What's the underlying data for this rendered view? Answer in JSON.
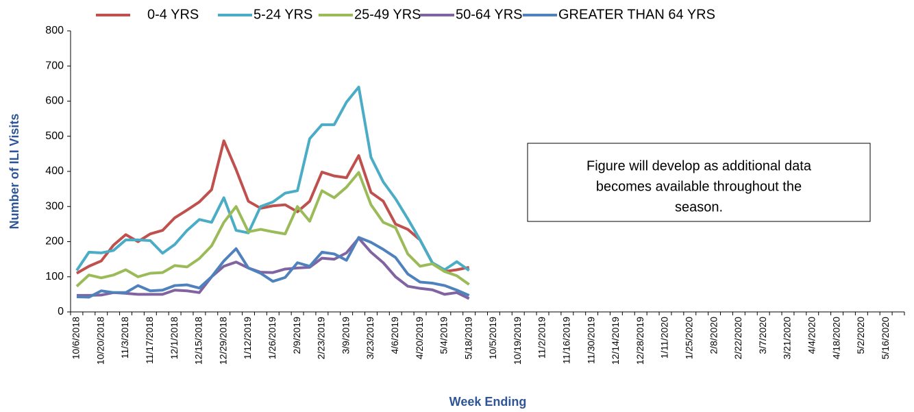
{
  "chart_data": {
    "type": "line",
    "x_label": "Week Ending",
    "y_label": "Number of ILI Visits",
    "annotation": [
      "Figure will develop as additional data",
      "becomes available throughout the",
      "season."
    ],
    "categories": [
      "10/6/2018",
      null,
      "10/20/2018",
      null,
      "11/3/2018",
      null,
      "11/17/2018",
      null,
      "12/1/2018",
      null,
      "12/15/2018",
      null,
      "12/29/2018",
      null,
      "1/12/2019",
      null,
      "1/26/2019",
      null,
      "2/9/2019",
      null,
      "2/23/2019",
      null,
      "3/9/2019",
      null,
      "3/23/2019",
      null,
      "4/6/2019",
      null,
      "4/20/2019",
      null,
      "5/4/2019",
      null,
      "5/18/2019",
      null,
      "10/5/2019",
      null,
      "10/19/2019",
      null,
      "11/2/2019",
      null,
      "11/16/2019",
      null,
      "11/30/2019",
      null,
      "12/14/2019",
      null,
      "12/28/2019",
      null,
      "1/11/2020",
      null,
      "1/25/2020",
      null,
      "2/8/2020",
      null,
      "2/22/2020",
      null,
      "3/7/2020",
      null,
      "3/21/2020",
      null,
      "4/4/2020",
      null,
      "4/18/2020",
      null,
      "5/2/2020",
      null,
      "5/16/2020",
      null
    ],
    "series": [
      {
        "name": "0-4 YRS",
        "color": "#c0504d",
        "values": [
          110,
          130,
          145,
          190,
          220,
          200,
          222,
          232,
          268,
          290,
          313,
          348,
          487,
          405,
          315,
          295,
          302,
          305,
          285,
          315,
          398,
          387,
          382,
          445,
          340,
          315,
          250,
          235,
          205,
          140,
          115,
          120,
          127,
          null,
          null,
          null,
          null,
          null,
          null,
          null,
          null,
          null,
          null,
          null,
          null,
          null,
          null,
          null,
          null,
          null,
          null,
          null,
          null,
          null,
          null,
          null,
          null,
          null,
          null,
          null,
          null,
          null,
          null,
          null,
          null,
          null,
          null,
          null
        ]
      },
      {
        "name": "5-24 YRS",
        "color": "#4bacc6",
        "values": [
          118,
          170,
          168,
          175,
          205,
          205,
          203,
          167,
          192,
          232,
          263,
          255,
          325,
          232,
          225,
          300,
          313,
          338,
          345,
          493,
          533,
          533,
          597,
          640,
          440,
          370,
          322,
          265,
          205,
          140,
          120,
          143,
          118,
          null,
          null,
          null,
          null,
          null,
          null,
          null,
          null,
          null,
          null,
          null,
          null,
          null,
          null,
          null,
          null,
          null,
          null,
          null,
          null,
          null,
          null,
          null,
          null,
          null,
          null,
          null,
          null,
          null,
          null,
          null,
          null,
          null,
          null,
          null
        ]
      },
      {
        "name": "25-49 YRS",
        "color": "#9bbb59",
        "values": [
          73,
          105,
          97,
          105,
          120,
          100,
          110,
          112,
          132,
          128,
          152,
          188,
          255,
          300,
          228,
          235,
          228,
          222,
          300,
          258,
          345,
          325,
          355,
          397,
          305,
          255,
          240,
          165,
          130,
          137,
          115,
          103,
          78,
          null,
          null,
          null,
          null,
          null,
          null,
          null,
          null,
          null,
          null,
          null,
          null,
          null,
          null,
          null,
          null,
          null,
          null,
          null,
          null,
          null,
          null,
          null,
          null,
          null,
          null,
          null,
          null,
          null,
          null,
          null,
          null,
          null,
          null,
          null
        ]
      },
      {
        "name": "50-64 YRS",
        "color": "#8064a2",
        "values": [
          47,
          47,
          48,
          55,
          53,
          50,
          50,
          50,
          62,
          60,
          55,
          100,
          130,
          142,
          125,
          113,
          112,
          122,
          125,
          127,
          153,
          150,
          168,
          210,
          170,
          140,
          100,
          73,
          67,
          63,
          50,
          55,
          38,
          null,
          null,
          null,
          null,
          null,
          null,
          null,
          null,
          null,
          null,
          null,
          null,
          null,
          null,
          null,
          null,
          null,
          null,
          null,
          null,
          null,
          null,
          null,
          null,
          null,
          null,
          null,
          null,
          null,
          null,
          null,
          null,
          null,
          null,
          null
        ]
      },
      {
        "name": "GREATER THAN 64 YRS",
        "color": "#4f81bd",
        "values": [
          43,
          42,
          60,
          55,
          55,
          75,
          60,
          62,
          75,
          77,
          68,
          100,
          145,
          180,
          125,
          110,
          87,
          98,
          140,
          130,
          170,
          165,
          147,
          212,
          198,
          178,
          155,
          108,
          85,
          82,
          75,
          62,
          47,
          null,
          null,
          null,
          null,
          null,
          null,
          null,
          null,
          null,
          null,
          null,
          null,
          null,
          null,
          null,
          null,
          null,
          null,
          null,
          null,
          null,
          null,
          null,
          null,
          null,
          null,
          null,
          null,
          null,
          null,
          null,
          null,
          null,
          null,
          null
        ]
      }
    ],
    "ylim": [
      0,
      800
    ],
    "yticks": [
      0,
      100,
      200,
      300,
      400,
      500,
      600,
      700,
      800
    ],
    "grid": false
  }
}
